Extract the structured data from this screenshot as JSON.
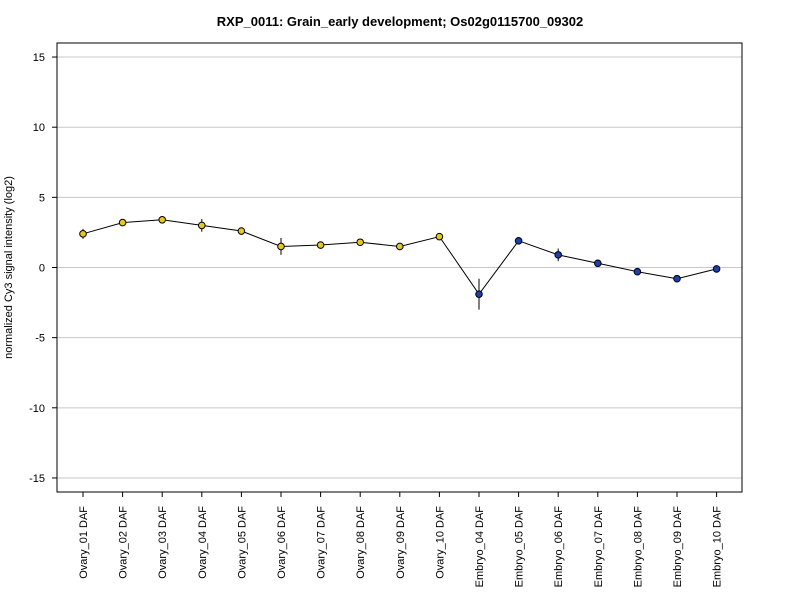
{
  "chart_data": {
    "type": "line",
    "title": "RXP_0011: Grain_early development; Os02g0115700_09302",
    "xlabel": "",
    "ylabel": "normalized Cy3 signal intensity (log2)",
    "ylim": [
      -16,
      16
    ],
    "yticks": [
      15,
      10,
      5,
      0,
      -5,
      -10,
      -15
    ],
    "grid": true,
    "categories": [
      "Ovary_01 DAF",
      "Ovary_02 DAF",
      "Ovary_03 DAF",
      "Ovary_04 DAF",
      "Ovary_05 DAF",
      "Ovary_06 DAF",
      "Ovary_07 DAF",
      "Ovary_08 DAF",
      "Ovary_09 DAF",
      "Ovary_10 DAF",
      "Embryo_04 DAF",
      "Embryo_05 DAF",
      "Embryo_06 DAF",
      "Embryo_07 DAF",
      "Embryo_08 DAF",
      "Embryo_09 DAF",
      "Embryo_10 DAF"
    ],
    "values": [
      2.4,
      3.2,
      3.4,
      3.0,
      2.6,
      1.5,
      1.6,
      1.8,
      1.5,
      2.2,
      -1.9,
      1.9,
      0.9,
      0.3,
      -0.3,
      -0.8,
      -0.1
    ],
    "errors": [
      0.35,
      0.15,
      0.15,
      0.45,
      0.2,
      0.6,
      0.15,
      0.2,
      0.2,
      0.2,
      1.1,
      0.15,
      0.45,
      0.15,
      0.15,
      0.15,
      0.15
    ],
    "point_colors": [
      "#e8c81c",
      "#e8c81c",
      "#e8c81c",
      "#e8c81c",
      "#e8c81c",
      "#e8c81c",
      "#e8c81c",
      "#e8c81c",
      "#e8c81c",
      "#e8c81c",
      "#1a3fb0",
      "#1a3fb0",
      "#1a3fb0",
      "#1a3fb0",
      "#1a3fb0",
      "#1a3fb0",
      "#1a3fb0"
    ]
  }
}
